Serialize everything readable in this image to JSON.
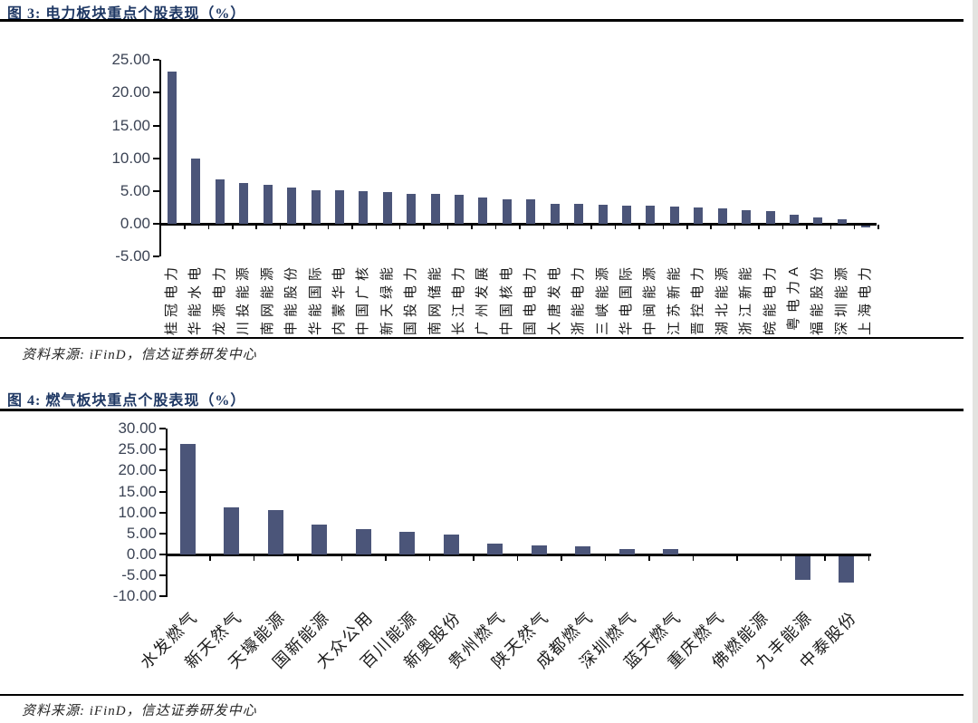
{
  "colors": {
    "bar": "#4B5579",
    "title_text": "#1F3864",
    "axis_line": "#000000",
    "tick_text": "#3C4455",
    "source_text": "#262626",
    "page_edge": "#e3e3e0"
  },
  "chart_data": [
    {
      "type": "bar",
      "title": "图 3: 电力板块重点个股表现（%）",
      "source": "资料来源: iFinD，信达证券研发中心",
      "categories": [
        "桂冠电力",
        "华能水电",
        "龙源电力",
        "川投能源",
        "南网能源",
        "申能股份",
        "华能国际",
        "内蒙华电",
        "中国广核",
        "新天绿能",
        "国投电力",
        "南网储能",
        "长江电力",
        "广州发展",
        "中国核电",
        "国电电力",
        "大唐发电",
        "浙能电力",
        "三峡能源",
        "华电国际",
        "中闽能源",
        "江苏新能",
        "晋控电力",
        "湖北能源",
        "浙江新能",
        "皖能电力",
        "粤电力A",
        "福能股份",
        "深圳能源",
        "上海电力"
      ],
      "values": [
        23.3,
        10.0,
        6.8,
        6.2,
        6.0,
        5.6,
        5.1,
        5.1,
        5.0,
        4.9,
        4.6,
        4.5,
        4.4,
        4.0,
        3.8,
        3.7,
        3.1,
        3.0,
        2.9,
        2.8,
        2.7,
        2.6,
        2.5,
        2.3,
        2.1,
        1.9,
        1.4,
        1.0,
        0.7,
        -0.3
      ],
      "xlabel": "",
      "ylabel": "",
      "ylim": [
        -5,
        25
      ],
      "yticks": [
        25,
        20,
        15,
        10,
        5,
        0,
        -5
      ],
      "ytick_labels": [
        "25.00",
        "20.00",
        "15.00",
        "10.00",
        "5.00",
        "0.00",
        "-5.00"
      ],
      "grid": false,
      "legend_position": "none",
      "bar_color": "#4B5579",
      "xlabel_rotation": -90
    },
    {
      "type": "bar",
      "title": "图 4: 燃气板块重点个股表现（%）",
      "source": "资料来源: iFinD，信达证券研发中心",
      "categories": [
        "水发燃气",
        "新天然气",
        "天壕能源",
        "国新能源",
        "大众公用",
        "百川能源",
        "新奥股份",
        "贵州燃气",
        "陕天然气",
        "成都燃气",
        "深圳燃气",
        "蓝天燃气",
        "重庆燃气",
        "佛燃能源",
        "九丰能源",
        "中泰股份"
      ],
      "values": [
        26.4,
        11.2,
        10.6,
        7.2,
        6.0,
        5.5,
        4.7,
        2.6,
        2.2,
        1.9,
        1.4,
        1.2,
        0.0,
        0.0,
        -5.8,
        -6.3
      ],
      "xlabel": "",
      "ylabel": "",
      "ylim": [
        -10,
        30
      ],
      "yticks": [
        30,
        25,
        20,
        15,
        10,
        5,
        0,
        -5,
        -10
      ],
      "ytick_labels": [
        "30.00",
        "25.00",
        "20.00",
        "15.00",
        "10.00",
        "5.00",
        "0.00",
        "-5.00",
        "-10.00"
      ],
      "grid": false,
      "legend_position": "none",
      "bar_color": "#4B5579",
      "xlabel_rotation": -45
    }
  ]
}
